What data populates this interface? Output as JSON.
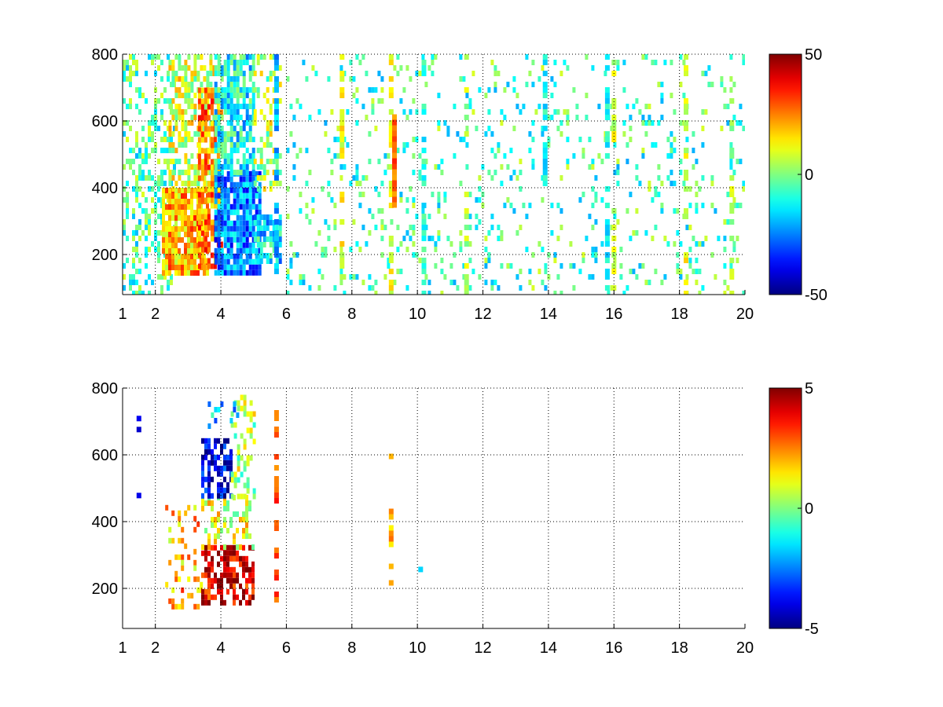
{
  "chart_data": [
    {
      "type": "heatmap",
      "title": "",
      "xlabel": "",
      "ylabel": "",
      "xlim": [
        1,
        20
      ],
      "ylim": [
        80,
        800
      ],
      "xticks": [
        1,
        2,
        4,
        6,
        8,
        10,
        12,
        14,
        16,
        18,
        20
      ],
      "xtick_labels": [
        "1",
        "2",
        "4",
        "6",
        "8",
        "10",
        "12",
        "14",
        "16",
        "18",
        "20"
      ],
      "yticks": [
        200,
        400,
        600,
        800
      ],
      "ytick_labels": [
        "200",
        "400",
        "600",
        "800"
      ],
      "grid": true,
      "colormap": "jet",
      "clim": [
        -50,
        50
      ],
      "colorbar_ticks": [
        -50,
        0,
        50
      ],
      "colorbar_labels": [
        "-50",
        "0",
        "50"
      ],
      "regions": [
        {
          "x": [
            1.0,
            2.6
          ],
          "y": [
            80,
            800
          ],
          "value": -5,
          "density": 0.35
        },
        {
          "x": [
            2.2,
            3.6
          ],
          "y": [
            150,
            400
          ],
          "value": 20,
          "density": 0.85
        },
        {
          "x": [
            2.4,
            3.8
          ],
          "y": [
            400,
            800
          ],
          "value": 8,
          "density": 0.55
        },
        {
          "x": [
            3.3,
            4.0
          ],
          "y": [
            160,
            700
          ],
          "value": 25,
          "density": 0.7
        },
        {
          "x": [
            3.8,
            5.2
          ],
          "y": [
            150,
            450
          ],
          "value": -25,
          "density": 0.85
        },
        {
          "x": [
            3.8,
            5.0
          ],
          "y": [
            450,
            800
          ],
          "value": -12,
          "density": 0.75
        },
        {
          "x": [
            5.0,
            5.8
          ],
          "y": [
            180,
            320
          ],
          "value": -15,
          "density": 0.7
        },
        {
          "x": [
            5.0,
            5.8
          ],
          "y": [
            400,
            800
          ],
          "value": 5,
          "density": 0.35
        },
        {
          "x": [
            6.0,
            20.0
          ],
          "y": [
            80,
            800
          ],
          "value": -6,
          "density": 0.12
        }
      ],
      "stripes": [
        {
          "x": 5.7,
          "y": [
            150,
            800
          ],
          "value": -20,
          "density": 0.6
        },
        {
          "x": 7.7,
          "y": [
            80,
            800
          ],
          "value": 12,
          "density": 0.5
        },
        {
          "x": 9.2,
          "y": [
            80,
            800
          ],
          "value": 10,
          "density": 0.55
        },
        {
          "x": 9.3,
          "y": [
            350,
            620
          ],
          "value": 28,
          "density": 0.9
        },
        {
          "x": 10.2,
          "y": [
            80,
            800
          ],
          "value": -10,
          "density": 0.4
        },
        {
          "x": 11.5,
          "y": [
            80,
            800
          ],
          "value": 6,
          "density": 0.3
        },
        {
          "x": 13.9,
          "y": [
            400,
            800
          ],
          "value": -12,
          "density": 0.6
        },
        {
          "x": 15.8,
          "y": [
            80,
            800
          ],
          "value": -12,
          "density": 0.55
        },
        {
          "x": 16.0,
          "y": [
            80,
            800
          ],
          "value": 8,
          "density": 0.4
        },
        {
          "x": 18.2,
          "y": [
            80,
            800
          ],
          "value": 10,
          "density": 0.45
        },
        {
          "x": 19.6,
          "y": [
            80,
            800
          ],
          "value": 5,
          "density": 0.3
        }
      ]
    },
    {
      "type": "heatmap",
      "title": "",
      "xlabel": "",
      "ylabel": "",
      "xlim": [
        1,
        20
      ],
      "ylim": [
        80,
        800
      ],
      "xticks": [
        1,
        2,
        4,
        6,
        8,
        10,
        12,
        14,
        16,
        18,
        20
      ],
      "xtick_labels": [
        "1",
        "2",
        "4",
        "6",
        "8",
        "10",
        "12",
        "14",
        "16",
        "18",
        "20"
      ],
      "yticks": [
        200,
        400,
        600,
        800
      ],
      "ytick_labels": [
        "200",
        "400",
        "600",
        "800"
      ],
      "grid": true,
      "colormap": "jet",
      "clim": [
        -5,
        5
      ],
      "colorbar_ticks": [
        -5,
        0,
        5
      ],
      "colorbar_labels": [
        "-5",
        "0",
        "5"
      ],
      "regions": [
        {
          "x": [
            2.3,
            3.4
          ],
          "y": [
            150,
            450
          ],
          "value": 2,
          "density": 0.25
        },
        {
          "x": [
            3.4,
            5.0
          ],
          "y": [
            160,
            330
          ],
          "value": 4,
          "density": 0.55
        },
        {
          "x": [
            3.4,
            5.0
          ],
          "y": [
            330,
            480
          ],
          "value": 1,
          "density": 0.4
        },
        {
          "x": [
            3.4,
            4.3
          ],
          "y": [
            480,
            650
          ],
          "value": -4,
          "density": 0.6
        },
        {
          "x": [
            4.3,
            5.0
          ],
          "y": [
            480,
            780
          ],
          "value": 0.5,
          "density": 0.35
        },
        {
          "x": [
            3.6,
            4.5
          ],
          "y": [
            650,
            760
          ],
          "value": -2,
          "density": 0.25
        }
      ],
      "stripes": [
        {
          "x": 1.5,
          "y": [
            150,
            750
          ],
          "value": -4,
          "density": 0.1
        },
        {
          "x": 5.7,
          "y": [
            160,
            800
          ],
          "value": 3,
          "density": 0.45
        },
        {
          "x": 9.2,
          "y": [
            160,
            620
          ],
          "value": 2,
          "density": 0.35
        },
        {
          "x": 10.1,
          "y": [
            250,
            265
          ],
          "value": -2,
          "density": 0.8
        }
      ]
    }
  ]
}
